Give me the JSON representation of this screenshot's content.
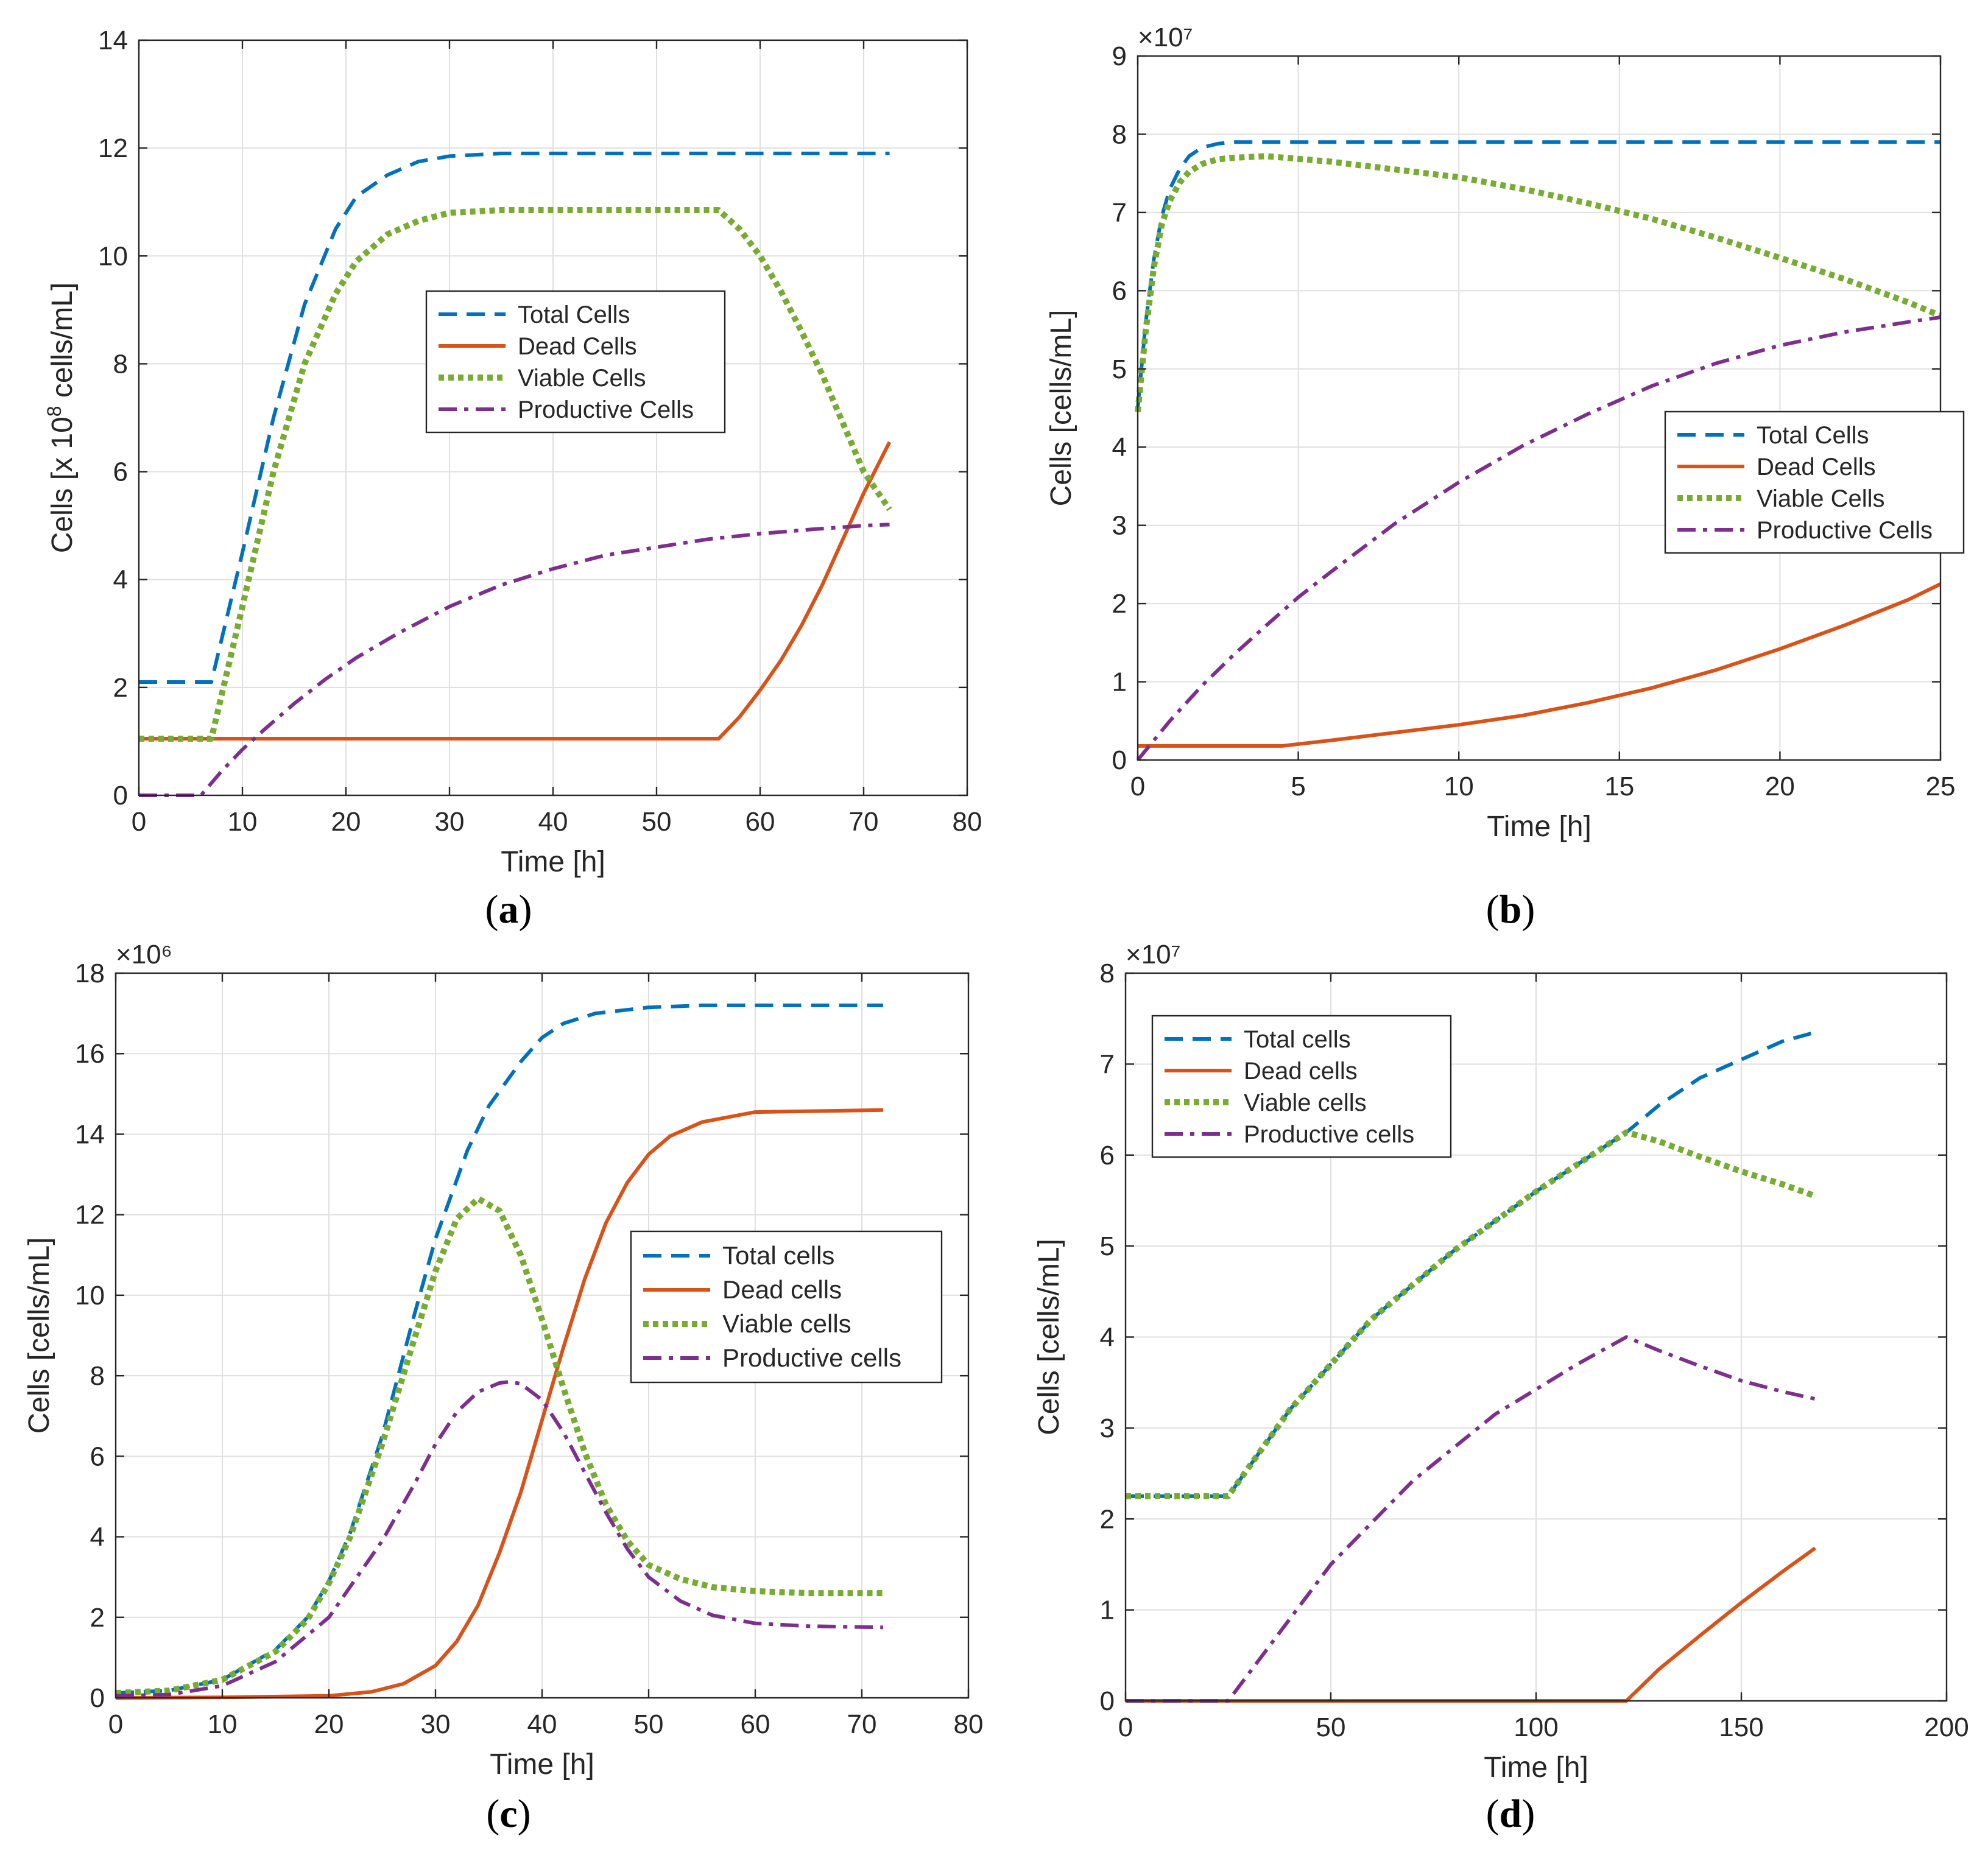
{
  "colors": {
    "total": "#0072BD",
    "dead": "#D95319",
    "viable": "#77AC30",
    "productive": "#7E2F8E",
    "axis": "#262626",
    "grid": "#dfdfdf"
  },
  "chart_data": [
    {
      "id": "a",
      "type": "line",
      "panel_label": "a",
      "xlabel": "Time [h]",
      "ylabel_parts": {
        "pre": "Cells [x 10",
        "exp": "8",
        "post": " cells/mL]"
      },
      "multiplier": "",
      "xlim": [
        0,
        80
      ],
      "ylim": [
        0,
        14
      ],
      "xticks": [
        0,
        10,
        20,
        30,
        40,
        50,
        60,
        70,
        80
      ],
      "yticks": [
        0,
        2,
        4,
        6,
        8,
        10,
        12,
        14
      ],
      "legend_position": "center",
      "series": [
        {
          "name": "Total Cells",
          "key": "total",
          "x": [
            0,
            7,
            10,
            13,
            16,
            19,
            21,
            24,
            27,
            30,
            35,
            40,
            50,
            60,
            72.5
          ],
          "y": [
            2.1,
            2.1,
            4.5,
            7.0,
            9.1,
            10.5,
            11.1,
            11.5,
            11.75,
            11.85,
            11.9,
            11.9,
            11.9,
            11.9,
            11.9
          ]
        },
        {
          "name": "Dead Cells",
          "key": "dead",
          "x": [
            0,
            56,
            58,
            60,
            62,
            64,
            66,
            68,
            70,
            72.5
          ],
          "y": [
            1.05,
            1.05,
            1.45,
            1.95,
            2.5,
            3.15,
            3.9,
            4.75,
            5.6,
            6.55
          ]
        },
        {
          "name": "Viable Cells",
          "key": "viable",
          "x": [
            0,
            7,
            10,
            13,
            16,
            19,
            21,
            24,
            27,
            30,
            35,
            40,
            50,
            56,
            58,
            60,
            62,
            64,
            66,
            68,
            70,
            72.5
          ],
          "y": [
            1.05,
            1.05,
            3.5,
            6.0,
            8.0,
            9.3,
            9.9,
            10.4,
            10.65,
            10.8,
            10.85,
            10.85,
            10.85,
            10.85,
            10.5,
            10.0,
            9.35,
            8.6,
            7.8,
            6.9,
            6.0,
            5.3
          ]
        },
        {
          "name": "Productive Cells",
          "key": "productive",
          "x": [
            0,
            6,
            8,
            10,
            12,
            15,
            18,
            21,
            25,
            30,
            35,
            40,
            45,
            50,
            55,
            60,
            65,
            70,
            72.5
          ],
          "y": [
            0,
            0,
            0.45,
            0.85,
            1.2,
            1.7,
            2.15,
            2.55,
            3.0,
            3.5,
            3.9,
            4.2,
            4.45,
            4.6,
            4.75,
            4.85,
            4.93,
            5.0,
            5.02
          ]
        }
      ]
    },
    {
      "id": "b",
      "type": "line",
      "panel_label": "b",
      "xlabel": "Time [h]",
      "ylabel_parts": {
        "pre": "Cells  [cells/mL]",
        "exp": "",
        "post": ""
      },
      "multiplier": "×10⁷",
      "xlim": [
        0,
        25
      ],
      "ylim": [
        0,
        9
      ],
      "xticks": [
        0,
        5,
        10,
        15,
        20,
        25
      ],
      "yticks": [
        0,
        1,
        2,
        3,
        4,
        5,
        6,
        7,
        8,
        9
      ],
      "legend_position": "right",
      "series": [
        {
          "name": "Total Cells",
          "key": "total",
          "x": [
            0,
            0.25,
            0.5,
            0.75,
            1.0,
            1.3,
            1.6,
            2.0,
            2.5,
            3.0,
            4.0,
            6,
            10,
            15,
            20,
            25
          ],
          "y": [
            4.5,
            5.6,
            6.4,
            6.95,
            7.3,
            7.55,
            7.72,
            7.83,
            7.88,
            7.9,
            7.9,
            7.9,
            7.9,
            7.9,
            7.9,
            7.9
          ]
        },
        {
          "name": "Dead Cells",
          "key": "dead",
          "x": [
            0,
            4.5,
            6,
            8,
            10,
            12,
            14,
            16,
            18,
            20,
            22,
            24,
            25
          ],
          "y": [
            0.18,
            0.18,
            0.25,
            0.35,
            0.45,
            0.57,
            0.73,
            0.92,
            1.15,
            1.42,
            1.72,
            2.05,
            2.25
          ]
        },
        {
          "name": "Viable Cells",
          "key": "viable",
          "x": [
            0,
            0.25,
            0.5,
            0.75,
            1.0,
            1.3,
            1.6,
            2.0,
            2.5,
            3.0,
            4.0,
            6,
            8,
            10,
            12,
            14,
            16,
            18,
            20,
            22,
            24,
            25
          ],
          "y": [
            4.45,
            5.5,
            6.3,
            6.85,
            7.15,
            7.38,
            7.52,
            7.62,
            7.68,
            7.7,
            7.72,
            7.65,
            7.55,
            7.45,
            7.3,
            7.12,
            6.92,
            6.68,
            6.42,
            6.15,
            5.85,
            5.68
          ]
        },
        {
          "name": "Productive Cells",
          "key": "productive",
          "x": [
            0,
            1,
            2,
            3,
            4,
            5,
            6,
            8,
            10,
            12,
            14,
            16,
            18,
            20,
            22,
            24,
            25
          ],
          "y": [
            0,
            0.5,
            0.95,
            1.35,
            1.72,
            2.08,
            2.4,
            3.02,
            3.55,
            4.02,
            4.42,
            4.78,
            5.07,
            5.3,
            5.47,
            5.6,
            5.66
          ]
        }
      ]
    },
    {
      "id": "c",
      "type": "line",
      "panel_label": "c",
      "xlabel": "Time  [h]",
      "ylabel_parts": {
        "pre": "Cells  [cells/mL]",
        "exp": "",
        "post": ""
      },
      "multiplier": "×10⁶",
      "xlim": [
        0,
        80
      ],
      "ylim": [
        0,
        18
      ],
      "xticks": [
        0,
        10,
        20,
        30,
        40,
        50,
        60,
        70,
        80
      ],
      "yticks": [
        0,
        2,
        4,
        6,
        8,
        10,
        12,
        14,
        16,
        18
      ],
      "legend_position": "right",
      "series": [
        {
          "name": "Total cells",
          "key": "total",
          "x": [
            0,
            5,
            10,
            15,
            18,
            20,
            22,
            25,
            28,
            30,
            33,
            35,
            38,
            40,
            42,
            45,
            50,
            55,
            60,
            72
          ],
          "y": [
            0.12,
            0.18,
            0.45,
            1.2,
            2.0,
            2.9,
            4.1,
            6.5,
            9.5,
            11.4,
            13.6,
            14.7,
            15.8,
            16.4,
            16.75,
            17.0,
            17.15,
            17.2,
            17.2,
            17.2
          ]
        },
        {
          "name": "Dead cells",
          "key": "dead",
          "x": [
            0,
            10,
            20,
            24,
            27,
            30,
            32,
            34,
            36,
            38,
            40,
            42,
            44,
            46,
            48,
            50,
            52,
            55,
            60,
            72
          ],
          "y": [
            0,
            0.01,
            0.05,
            0.15,
            0.35,
            0.8,
            1.4,
            2.3,
            3.6,
            5.1,
            6.9,
            8.7,
            10.4,
            11.8,
            12.8,
            13.5,
            13.95,
            14.3,
            14.55,
            14.6
          ]
        },
        {
          "name": "Viable cells",
          "key": "viable",
          "x": [
            0,
            5,
            10,
            15,
            18,
            20,
            22,
            25,
            28,
            30,
            32,
            34,
            36,
            38,
            40,
            42,
            44,
            46,
            48,
            50,
            53,
            56,
            60,
            65,
            72
          ],
          "y": [
            0.12,
            0.18,
            0.45,
            1.15,
            1.95,
            2.85,
            4.0,
            6.3,
            8.9,
            10.6,
            11.9,
            12.4,
            12.1,
            11.0,
            9.4,
            7.7,
            6.1,
            4.8,
            3.9,
            3.3,
            2.95,
            2.75,
            2.65,
            2.6,
            2.6
          ]
        },
        {
          "name": "Productive cells",
          "key": "productive",
          "x": [
            0,
            5,
            10,
            15,
            20,
            25,
            28,
            30,
            32,
            34,
            36,
            37,
            38,
            40,
            42,
            44,
            46,
            48,
            50,
            53,
            56,
            60,
            65,
            72
          ],
          "y": [
            0.05,
            0.08,
            0.3,
            0.9,
            2.0,
            3.9,
            5.3,
            6.3,
            7.1,
            7.6,
            7.82,
            7.85,
            7.8,
            7.4,
            6.6,
            5.6,
            4.6,
            3.7,
            3.0,
            2.4,
            2.05,
            1.85,
            1.78,
            1.75
          ]
        }
      ]
    },
    {
      "id": "d",
      "type": "line",
      "panel_label": "d",
      "xlabel": "Time [h]",
      "ylabel_parts": {
        "pre": "Cells  [cells/mL]",
        "exp": "",
        "post": ""
      },
      "multiplier": "×10⁷",
      "xlim": [
        0,
        200
      ],
      "ylim": [
        0,
        8
      ],
      "xticks": [
        0,
        50,
        100,
        150,
        200
      ],
      "yticks": [
        0,
        1,
        2,
        3,
        4,
        5,
        6,
        7,
        8
      ],
      "legend_position": "top-left",
      "series": [
        {
          "name": "Total cells",
          "key": "total",
          "x": [
            0,
            25,
            40,
            60,
            80,
            100,
            122,
            130,
            140,
            150,
            160,
            168
          ],
          "y": [
            2.25,
            2.25,
            3.2,
            4.2,
            4.95,
            5.6,
            6.25,
            6.55,
            6.85,
            7.05,
            7.25,
            7.35
          ]
        },
        {
          "name": "Dead cells",
          "key": "dead",
          "x": [
            0,
            122,
            130,
            140,
            150,
            160,
            168
          ],
          "y": [
            0,
            0,
            0.35,
            0.72,
            1.08,
            1.42,
            1.68
          ]
        },
        {
          "name": "Viable cells",
          "key": "viable",
          "x": [
            0,
            25,
            40,
            60,
            80,
            100,
            122,
            130,
            140,
            150,
            160,
            168
          ],
          "y": [
            2.25,
            2.25,
            3.2,
            4.2,
            4.95,
            5.6,
            6.25,
            6.15,
            5.98,
            5.82,
            5.68,
            5.55
          ]
        },
        {
          "name": "Productive cells",
          "key": "productive",
          "x": [
            0,
            25,
            35,
            50,
            70,
            90,
            110,
            122,
            130,
            140,
            150,
            160,
            168
          ],
          "y": [
            0,
            0,
            0.6,
            1.5,
            2.42,
            3.15,
            3.7,
            4.0,
            3.85,
            3.68,
            3.52,
            3.4,
            3.32
          ]
        }
      ]
    }
  ]
}
